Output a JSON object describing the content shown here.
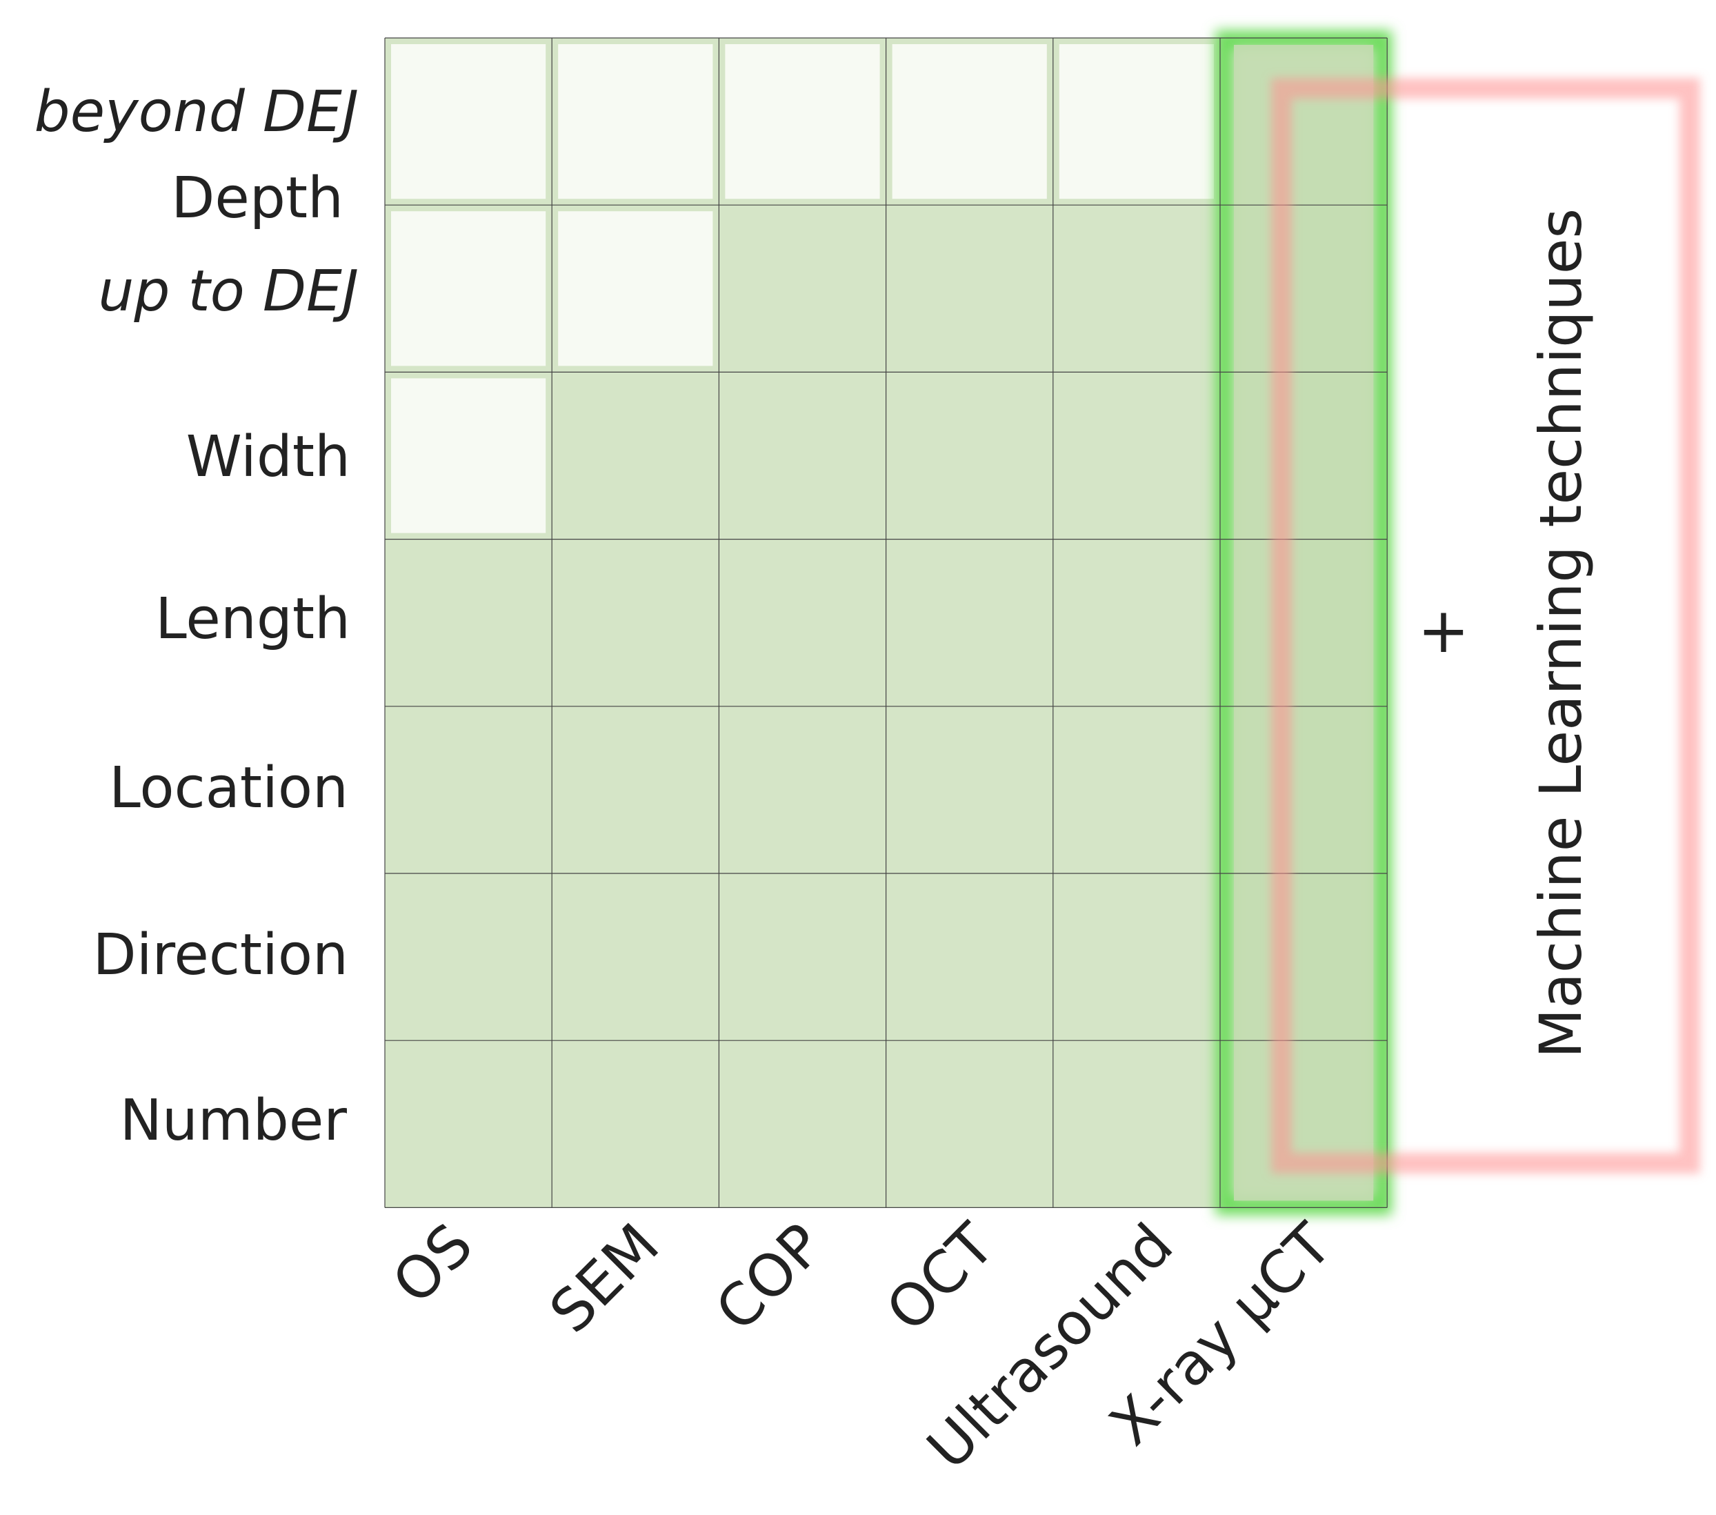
{
  "rows": [
    {
      "id": "depth-beyond",
      "label": "beyond DEJ",
      "italic": true
    },
    {
      "id": "depth-upto",
      "label": "up to DEJ",
      "italic": true
    },
    {
      "id": "width",
      "label": "Width",
      "italic": false
    },
    {
      "id": "length",
      "label": "Length",
      "italic": false
    },
    {
      "id": "location",
      "label": "Location",
      "italic": false
    },
    {
      "id": "direction",
      "label": "Direction",
      "italic": false
    },
    {
      "id": "number",
      "label": "Number",
      "italic": false
    }
  ],
  "depth_label": "Depth",
  "columns": [
    "OS",
    "SEM",
    "COP",
    "OCT",
    "Ultrasound",
    "X-ray µCT"
  ],
  "capability_matrix": [
    [
      false,
      false,
      false,
      false,
      false,
      true
    ],
    [
      false,
      false,
      true,
      true,
      true,
      true
    ],
    [
      false,
      true,
      true,
      true,
      true,
      true
    ],
    [
      true,
      true,
      true,
      true,
      true,
      true
    ],
    [
      true,
      true,
      true,
      true,
      true,
      true
    ],
    [
      true,
      true,
      true,
      true,
      true,
      true
    ],
    [
      true,
      true,
      true,
      true,
      true,
      true
    ]
  ],
  "highlighted_column": "X-ray µCT",
  "plus_sign": "+",
  "side_text": "Machine Learning techniques",
  "colors": {
    "filled_cell": "#d5e5c7",
    "empty_cell": "#f7faf3",
    "empty_border": "#d5e5c7",
    "grid_line": "#444444",
    "highlight_green": "#6fdd5f",
    "highlight_red": "#ff8f8f",
    "text": "#222222"
  }
}
